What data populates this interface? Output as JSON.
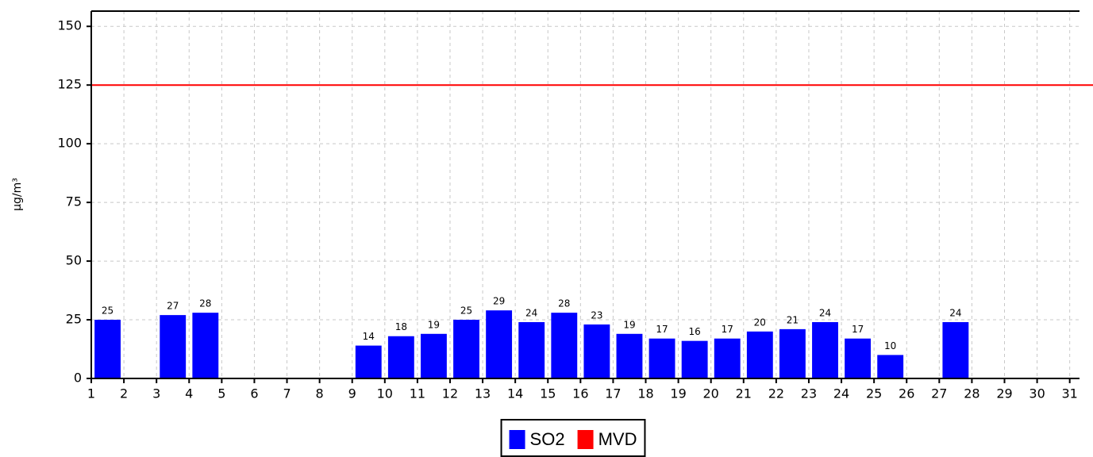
{
  "chart_data": {
    "type": "bar",
    "x": [
      1,
      2,
      3,
      4,
      5,
      6,
      7,
      8,
      9,
      10,
      11,
      12,
      13,
      14,
      15,
      16,
      17,
      18,
      19,
      20,
      21,
      22,
      23,
      24,
      25,
      26,
      27,
      28,
      29,
      30,
      31
    ],
    "series": [
      {
        "name": "SO2",
        "color": "#0000ff",
        "values": [
          25,
          null,
          27,
          28,
          null,
          null,
          null,
          null,
          14,
          18,
          19,
          25,
          29,
          24,
          28,
          23,
          19,
          17,
          16,
          17,
          20,
          21,
          24,
          17,
          10,
          null,
          24,
          null,
          null,
          null,
          null
        ]
      },
      {
        "name": "MVD",
        "color": "#ff0000",
        "type": "hline",
        "value": 125
      }
    ],
    "ylabel": "µg/m³",
    "xlim": [
      1,
      31.3
    ],
    "xticks": [
      1,
      2,
      3,
      4,
      5,
      6,
      7,
      8,
      9,
      10,
      11,
      12,
      13,
      14,
      15,
      16,
      17,
      18,
      19,
      20,
      21,
      22,
      23,
      24,
      25,
      26,
      27,
      28,
      29,
      30,
      31
    ],
    "ylim": [
      0,
      156.5
    ],
    "yticks": [
      0,
      25,
      50,
      75,
      100,
      125,
      150
    ],
    "grid": true,
    "legend": "bottom"
  }
}
